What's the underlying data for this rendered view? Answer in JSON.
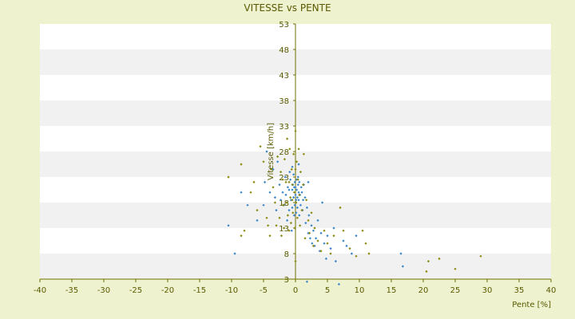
{
  "chart_data": {
    "type": "scatter",
    "title": "VITESSE vs PENTE",
    "xlabel": "Pente [%]",
    "ylabel": "Vitesse [km/h]",
    "xlim": [
      -40,
      40
    ],
    "ylim": [
      3,
      53
    ],
    "x_ticks": [
      "-40",
      "-35",
      "-30",
      "-25",
      "-20",
      "-15",
      "-10",
      "-5",
      "0",
      "5",
      "10",
      "15",
      "20",
      "25",
      "30",
      "35",
      "40"
    ],
    "y_ticks": [
      "3",
      "8",
      "13",
      "18",
      "23",
      "28",
      "33",
      "38",
      "43",
      "48",
      "53"
    ],
    "grid": "horizontal bands",
    "colors": {
      "series_a": "#3a85c8",
      "series_b": "#8a8a10",
      "axis": "#707000",
      "band": "#f1f1f1"
    },
    "series": [
      {
        "color": "#3a85c8",
        "points": [
          [
            -10.5,
            13.5
          ],
          [
            -9.5,
            8.0
          ],
          [
            -8.5,
            20.0
          ],
          [
            -7.5,
            17.5
          ],
          [
            -6.0,
            14.5
          ],
          [
            -5.0,
            17.5
          ],
          [
            -4.8,
            22.0
          ],
          [
            -4.5,
            28.0
          ],
          [
            -4.0,
            20.0
          ],
          [
            -3.5,
            24.5
          ],
          [
            -3.2,
            19.0
          ],
          [
            -3.0,
            16.5
          ],
          [
            -2.8,
            26.0
          ],
          [
            -2.5,
            21.5
          ],
          [
            -2.3,
            18.5
          ],
          [
            -2.0,
            20.0
          ],
          [
            -1.8,
            17.5
          ],
          [
            -1.6,
            23.0
          ],
          [
            -1.5,
            19.5
          ],
          [
            -1.3,
            14.5
          ],
          [
            -1.2,
            21.0
          ],
          [
            -1.0,
            20.5
          ],
          [
            -1.0,
            16.5
          ],
          [
            -0.9,
            24.0
          ],
          [
            -0.8,
            22.5
          ],
          [
            -0.7,
            18.5
          ],
          [
            -0.6,
            12.5
          ],
          [
            -0.5,
            20.5
          ],
          [
            -0.5,
            17.0
          ],
          [
            -0.4,
            21.5
          ],
          [
            -0.3,
            23.5
          ],
          [
            -0.3,
            19.0
          ],
          [
            -0.2,
            15.5
          ],
          [
            -0.2,
            21.0
          ],
          [
            -0.1,
            17.5
          ],
          [
            -0.1,
            22.0
          ],
          [
            0.0,
            19.5
          ],
          [
            0.0,
            21.0
          ],
          [
            0.1,
            16.0
          ],
          [
            0.1,
            18.5
          ],
          [
            0.2,
            20.5
          ],
          [
            0.2,
            22.5
          ],
          [
            0.3,
            19.0
          ],
          [
            0.3,
            17.0
          ],
          [
            0.4,
            21.5
          ],
          [
            0.4,
            23.0
          ],
          [
            0.5,
            18.5
          ],
          [
            0.5,
            20.0
          ],
          [
            0.6,
            15.5
          ],
          [
            0.6,
            22.0
          ],
          [
            0.7,
            19.5
          ],
          [
            0.8,
            17.5
          ],
          [
            0.9,
            21.0
          ],
          [
            1.0,
            20.0
          ],
          [
            1.1,
            16.5
          ],
          [
            1.2,
            18.5
          ],
          [
            1.3,
            21.5
          ],
          [
            1.5,
            19.0
          ],
          [
            1.6,
            14.0
          ],
          [
            1.8,
            17.0
          ],
          [
            2.0,
            12.0
          ],
          [
            2.1,
            15.5
          ],
          [
            2.3,
            11.0
          ],
          [
            2.5,
            13.5
          ],
          [
            2.6,
            10.0
          ],
          [
            2.8,
            12.5
          ],
          [
            3.0,
            9.5
          ],
          [
            3.2,
            11.0
          ],
          [
            3.5,
            14.5
          ],
          [
            3.8,
            8.5
          ],
          [
            4.0,
            12.0
          ],
          [
            4.2,
            18.0
          ],
          [
            4.5,
            10.0
          ],
          [
            4.8,
            7.0
          ],
          [
            5.0,
            11.5
          ],
          [
            5.5,
            9.0
          ],
          [
            6.0,
            13.0
          ],
          [
            6.3,
            6.5
          ],
          [
            6.8,
            2.0
          ],
          [
            7.5,
            10.5
          ],
          [
            8.0,
            9.5
          ],
          [
            8.8,
            8.0
          ],
          [
            9.5,
            11.5
          ],
          [
            16.5,
            8.0
          ],
          [
            16.8,
            5.5
          ],
          [
            1.8,
            2.5
          ],
          [
            0.5,
            25.5
          ],
          [
            -0.5,
            25.0
          ],
          [
            2.0,
            22.0
          ]
        ]
      },
      {
        "color": "#8a8a10",
        "points": [
          [
            -10.5,
            23.0
          ],
          [
            -8.5,
            25.5
          ],
          [
            -8.5,
            11.5
          ],
          [
            -8.0,
            12.5
          ],
          [
            -7.0,
            20.0
          ],
          [
            -6.5,
            22.0
          ],
          [
            -6.0,
            16.5
          ],
          [
            -5.5,
            29.0
          ],
          [
            -5.0,
            26.0
          ],
          [
            -4.5,
            15.0
          ],
          [
            -4.3,
            13.5
          ],
          [
            -4.0,
            11.5
          ],
          [
            -3.8,
            24.5
          ],
          [
            -3.5,
            21.0
          ],
          [
            -3.2,
            18.0
          ],
          [
            -3.0,
            13.5
          ],
          [
            -2.8,
            27.0
          ],
          [
            -2.5,
            15.0
          ],
          [
            -2.3,
            24.0
          ],
          [
            -2.2,
            11.5
          ],
          [
            -2.0,
            22.5
          ],
          [
            -1.9,
            17.5
          ],
          [
            -1.8,
            13.0
          ],
          [
            -1.7,
            26.5
          ],
          [
            -1.5,
            22.0
          ],
          [
            -1.4,
            18.0
          ],
          [
            -1.3,
            30.5
          ],
          [
            -1.2,
            15.5
          ],
          [
            -1.0,
            22.0
          ],
          [
            -1.0,
            12.5
          ],
          [
            -0.9,
            28.5
          ],
          [
            -0.8,
            19.0
          ],
          [
            -0.7,
            14.0
          ],
          [
            -0.6,
            24.5
          ],
          [
            -0.5,
            21.5
          ],
          [
            -0.4,
            16.0
          ],
          [
            -0.3,
            27.5
          ],
          [
            -0.2,
            20.0
          ],
          [
            -0.1,
            13.0
          ],
          [
            0.0,
            24.5
          ],
          [
            0.0,
            32.0
          ],
          [
            0.0,
            6.5
          ],
          [
            0.1,
            18.0
          ],
          [
            0.2,
            26.0
          ],
          [
            0.3,
            15.0
          ],
          [
            0.4,
            22.5
          ],
          [
            0.5,
            28.5
          ],
          [
            0.6,
            19.5
          ],
          [
            0.7,
            13.5
          ],
          [
            0.8,
            24.0
          ],
          [
            1.0,
            16.5
          ],
          [
            1.2,
            21.5
          ],
          [
            1.3,
            27.5
          ],
          [
            1.5,
            11.0
          ],
          [
            1.7,
            18.5
          ],
          [
            2.0,
            14.5
          ],
          [
            2.2,
            12.0
          ],
          [
            2.5,
            16.0
          ],
          [
            2.8,
            9.5
          ],
          [
            3.0,
            13.0
          ],
          [
            3.5,
            10.5
          ],
          [
            4.0,
            8.5
          ],
          [
            4.5,
            12.5
          ],
          [
            5.0,
            10.0
          ],
          [
            5.5,
            8.0
          ],
          [
            6.0,
            11.5
          ],
          [
            7.0,
            17.0
          ],
          [
            7.5,
            12.5
          ],
          [
            8.5,
            9.0
          ],
          [
            9.5,
            7.5
          ],
          [
            10.5,
            12.5
          ],
          [
            11.0,
            10.0
          ],
          [
            11.5,
            8.0
          ],
          [
            20.5,
            4.5
          ],
          [
            20.8,
            6.5
          ],
          [
            22.5,
            7.0
          ],
          [
            25.0,
            5.0
          ],
          [
            29.0,
            7.5
          ],
          [
            -1.5,
            3.0
          ],
          [
            -0.5,
            18.5
          ]
        ]
      }
    ]
  }
}
